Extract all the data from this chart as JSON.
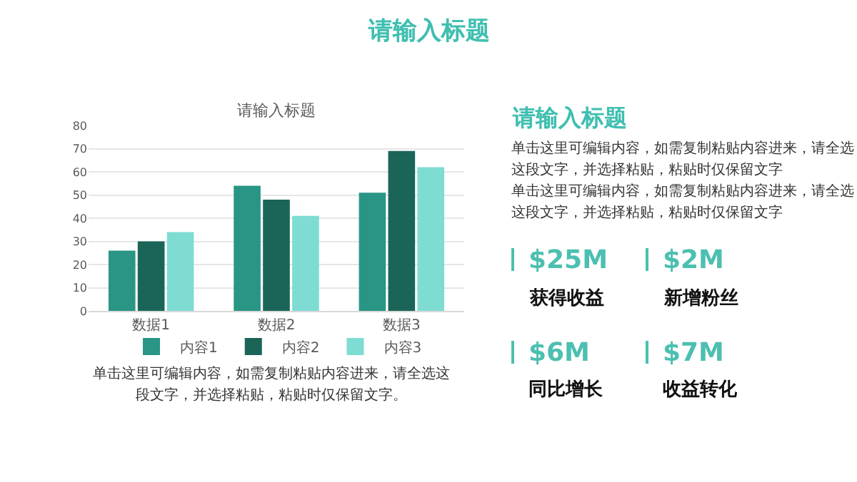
{
  "chart_data": {
    "type": "bar",
    "title": "请输入标题",
    "categories": [
      "数据1",
      "数据2",
      "数据3"
    ],
    "series": [
      {
        "name": "内容1",
        "color": "#2a9585",
        "values": [
          26,
          54,
          51
        ]
      },
      {
        "name": "内容2",
        "color": "#1b6558",
        "values": [
          30,
          48,
          69
        ]
      },
      {
        "name": "内容3",
        "color": "#7edcd3",
        "values": [
          34,
          41,
          62
        ]
      }
    ],
    "ylim": [
      0,
      80
    ],
    "yticks": [
      0,
      10,
      20,
      30,
      40,
      50,
      60,
      70,
      80
    ],
    "grid": "y",
    "legend": "bottom",
    "annotations": [
      "请输入标题",
      "请输入标题",
      "单击这里可编辑内容，如需复制粘贴内容进来，请全选",
      "这段文字，并选择粘贴，粘贴时仅保留文字",
      "单击这里可编辑内容，如需复制粘贴内容进来，请全选",
      "这段文字，并选择粘贴，粘贴时仅保留文字",
      "$25M",
      "获得收益",
      "$2M",
      "新增粉丝",
      "$6M",
      "同比增长",
      "$7M",
      "收益转化",
      "单击这里可编辑内容，如需复制粘贴内容进来，请全选这",
      "段文字，并选择粘贴，粘贴时仅保留文字。"
    ]
  }
}
